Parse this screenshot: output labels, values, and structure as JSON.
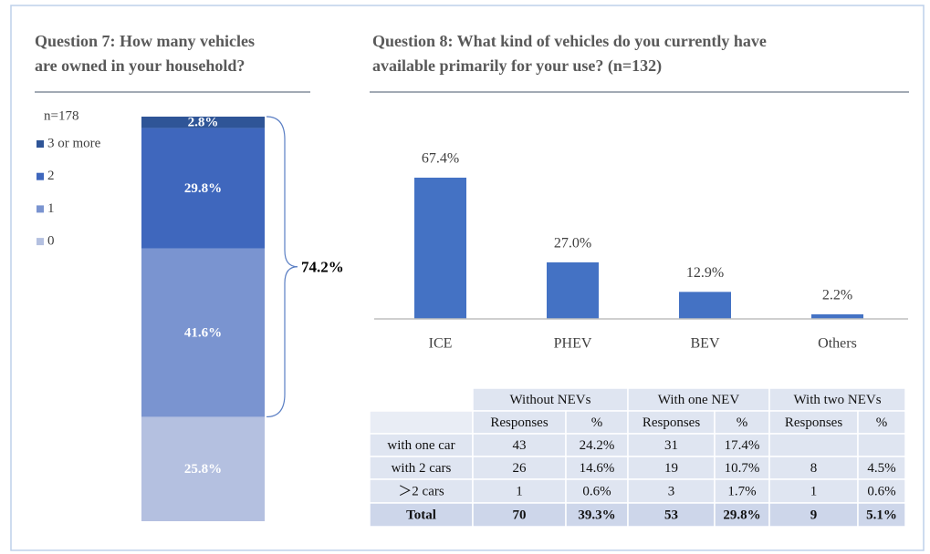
{
  "chart_data": [
    {
      "type": "stacked_bar",
      "title": [
        "Question 7: How many vehicles",
        "are owned in your household?"
      ],
      "note": "n=178",
      "ylim": [
        0,
        100
      ],
      "series": [
        {
          "name": "0",
          "color": "#b4c0e0",
          "values": [
            25.8
          ],
          "value_labels": [
            "25.8%"
          ]
        },
        {
          "name": "1",
          "color": "#7a94d0",
          "values": [
            41.6
          ],
          "value_labels": [
            "41.6%"
          ]
        },
        {
          "name": "2",
          "color": "#3f67bd",
          "values": [
            29.8
          ],
          "value_labels": [
            "29.8%"
          ]
        },
        {
          "name": "3 or more",
          "color": "#2f5597",
          "values": [
            2.8
          ],
          "value_labels": [
            "2.8%"
          ]
        }
      ],
      "annotation": {
        "value": 74.2,
        "label": "74.2%"
      }
    },
    {
      "type": "bar",
      "title": [
        "Question 8: What kind of vehicles do you currently have",
        "available primarily for your use? (n=132)"
      ],
      "categories": [
        "ICE",
        "PHEV",
        "BEV",
        "Others"
      ],
      "values": [
        67.4,
        27.0,
        12.9,
        2.2
      ],
      "value_labels": [
        "67.4%",
        "27.0%",
        "12.9%",
        "2.2%"
      ],
      "color": "#4472c4",
      "ylim": [
        0,
        80
      ]
    }
  ],
  "table": {
    "header": [
      "Without NEVs",
      "With one NEV",
      "With two NEVs"
    ],
    "subheader": [
      "Responses",
      "%",
      "Responses",
      "%",
      "Responses",
      "%"
    ],
    "rows": [
      [
        "with one car",
        "43",
        "24.2%",
        "31",
        "17.4%",
        null,
        null
      ],
      [
        "with 2 cars",
        "26",
        "14.6%",
        "19",
        "10.7%",
        "8",
        "4.5%"
      ],
      [
        "＞2 cars",
        "1",
        "0.6%",
        "3",
        "1.7%",
        "1",
        "0.6%"
      ],
      [
        "Total",
        "70",
        "39.3%",
        "53",
        "29.8%",
        "9",
        "5.1%"
      ]
    ]
  }
}
